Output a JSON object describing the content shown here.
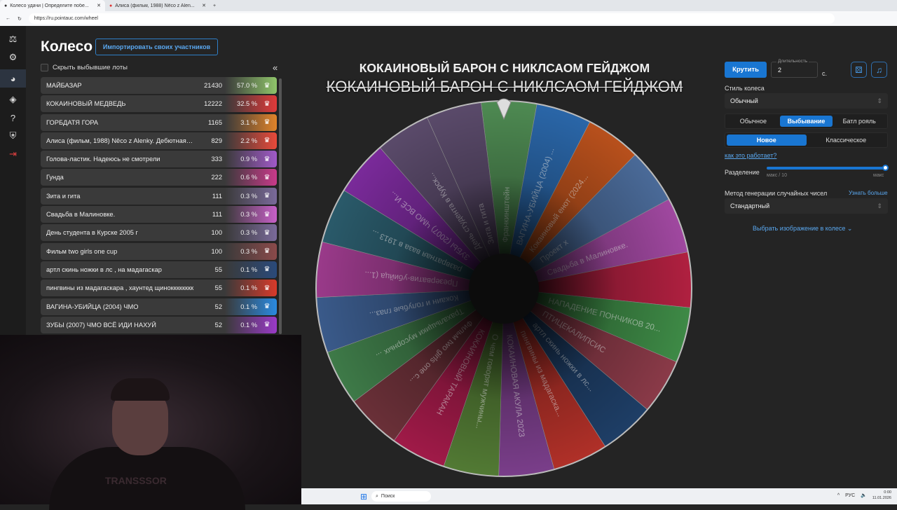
{
  "browser": {
    "tabs": [
      {
        "title": "Колесо удачи | Определите побе..."
      },
      {
        "title": "Алиса (фильм, 1988) Nêco z Alen..."
      }
    ],
    "url": "https://ru.pointauc.com/wheel"
  },
  "page": {
    "title": "Колесо",
    "import_button": "Импортировать своих участников",
    "hide_checkbox": "Скрыть выбывшие лоты",
    "collapse": "«"
  },
  "lots": [
    {
      "name": "МАЙБАЗАР",
      "amount": "21430",
      "percent": "57.0 %",
      "color": "#8fc46a"
    },
    {
      "name": "КОКАИНОВЫЙ МЕДВЕДЬ",
      "amount": "12222",
      "percent": "32.5 %",
      "color": "#e03a3a"
    },
    {
      "name": "ГОРБДАТЯ ГОРА",
      "amount": "1165",
      "percent": "3.1 %",
      "color": "#e0832a"
    },
    {
      "name": "Алиса (фильм, 1988) Nêco z Alenky. Дебютная ра...",
      "amount": "829",
      "percent": "2.2 %",
      "color": "#e84a3a"
    },
    {
      "name": "Голова-ластик. Надеюсь не смотрели",
      "amount": "333",
      "percent": "0.9 %",
      "color": "#a05ac8"
    },
    {
      "name": "Гунда",
      "amount": "222",
      "percent": "0.6 %",
      "color": "#c83a8a"
    },
    {
      "name": "Зита и гита",
      "amount": "111",
      "percent": "0.3 %",
      "color": "#7a6a9a"
    },
    {
      "name": "Свадьба в Малиновке.",
      "amount": "111",
      "percent": "0.3 %",
      "color": "#c860c8"
    },
    {
      "name": "День студента в Курске 2005 г",
      "amount": "100",
      "percent": "0.3 %",
      "color": "#7a6a9a"
    },
    {
      "name": "Фильм two girls one cup",
      "amount": "100",
      "percent": "0.3 %",
      "color": "#8a4a4a"
    },
    {
      "name": "артл скинь ножки в лс , на мадагаскар",
      "amount": "55",
      "percent": "0.1 %",
      "color": "#2a4a7a"
    },
    {
      "name": "пингвины из мадагаскара , хаунтед щинокккккккк",
      "amount": "55",
      "percent": "0.1 %",
      "color": "#d83a2a"
    },
    {
      "name": "ВАГИНА-УБИЙЦА (2004) ЧМО",
      "amount": "52",
      "percent": "0.1 %",
      "color": "#2a8ae0"
    },
    {
      "name": "ЗУБЫ (2007) ЧМО ВСЁ ИДИ НАХУЙ",
      "amount": "52",
      "percent": "0.1 %",
      "color": "#9a3ac8"
    }
  ],
  "wheel": {
    "title": "КОКАИНОВЫЙ БАРОН С НИКЛСАОМ ГЕЙДЖОМ",
    "eliminated": "КОКАИНОВЫЙ БАРОН С НИКЛСАОМ ГЕЙДЖОМ",
    "segments": [
      {
        "label": "Франкинштейн",
        "color": "#4e8a52"
      },
      {
        "label": "ВАГИНА-УБИЙЦА (2004) ...",
        "color": "#2a66a8"
      },
      {
        "label": "Кокаиновый енот (2024...",
        "color": "#b8501c"
      },
      {
        "label": "Проект х",
        "color": "#4a6a98"
      },
      {
        "label": "Свадьба в Малиновке.",
        "color": "#a048a0"
      },
      {
        "label": "",
        "color": "#b02040"
      },
      {
        "label": "НАПАДЕНИЕ ПОНЧИКОВ 20...",
        "color": "#3e8a46"
      },
      {
        "label": "ПТИЦЕКАЛИПСИС",
        "color": "#8a3a48"
      },
      {
        "label": "артл скинь ножки в лс...",
        "color": "#1e3e66"
      },
      {
        "label": "пингвины из мадагаска...",
        "color": "#b03028"
      },
      {
        "label": "КОКАИНОВАЯ АКУЛА 2023",
        "color": "#7a3e8a"
      },
      {
        "label": "О чем говорят мужчины...",
        "color": "#527a34"
      },
      {
        "label": "КОКАИНОВЫЙ ТАРАКАН",
        "color": "#a01a48"
      },
      {
        "label": "Фильм two girls one c...",
        "color": "#6a3038"
      },
      {
        "label": "Трахальщики мусорных ...",
        "color": "#3e7a48"
      },
      {
        "label": "Кокаин и голубые глаз...",
        "color": "#3a5a8a"
      },
      {
        "label": "Презерватив-убийца (1...",
        "color": "#9a3a8a"
      },
      {
        "label": "развратная ваза в 1913 ...",
        "color": "#2a5a6a"
      },
      {
        "label": "ЗУБЫ (2007) ЧМО ВСЁ И...",
        "color": "#7a2a9a"
      },
      {
        "label": "День студента в Курск...",
        "color": "#5a4a6a"
      },
      {
        "label": "Зита и гита",
        "color": "#5a4a6a"
      }
    ]
  },
  "controls": {
    "spin": "Крутить",
    "duration_label": "Длительность",
    "duration": "2",
    "seconds": "с.",
    "style_label": "Стиль колеса",
    "style_value": "Обычный",
    "modes": [
      "Обычное",
      "Выбывание",
      "Батл рояль"
    ],
    "active_mode": "Выбывание",
    "submodes": [
      "Новое",
      "Классическое"
    ],
    "active_submode": "Новое",
    "how_link": "как это работает?",
    "split_label": "Разделение",
    "split_min": "макс / 10",
    "split_max": "макс",
    "split_value": 1.0,
    "rng_label": "Метод генерации случайных чисел",
    "rng_more": "Узнать больше",
    "rng_value": "Стандартный",
    "image_link": "Выбрать изображение в колесе"
  },
  "taskbar": {
    "search": "Поиск",
    "lang": "РУС",
    "time": "0:00",
    "date": "11.01.2026"
  },
  "webcam": {
    "shirt_text": "TRANSSSOR"
  }
}
